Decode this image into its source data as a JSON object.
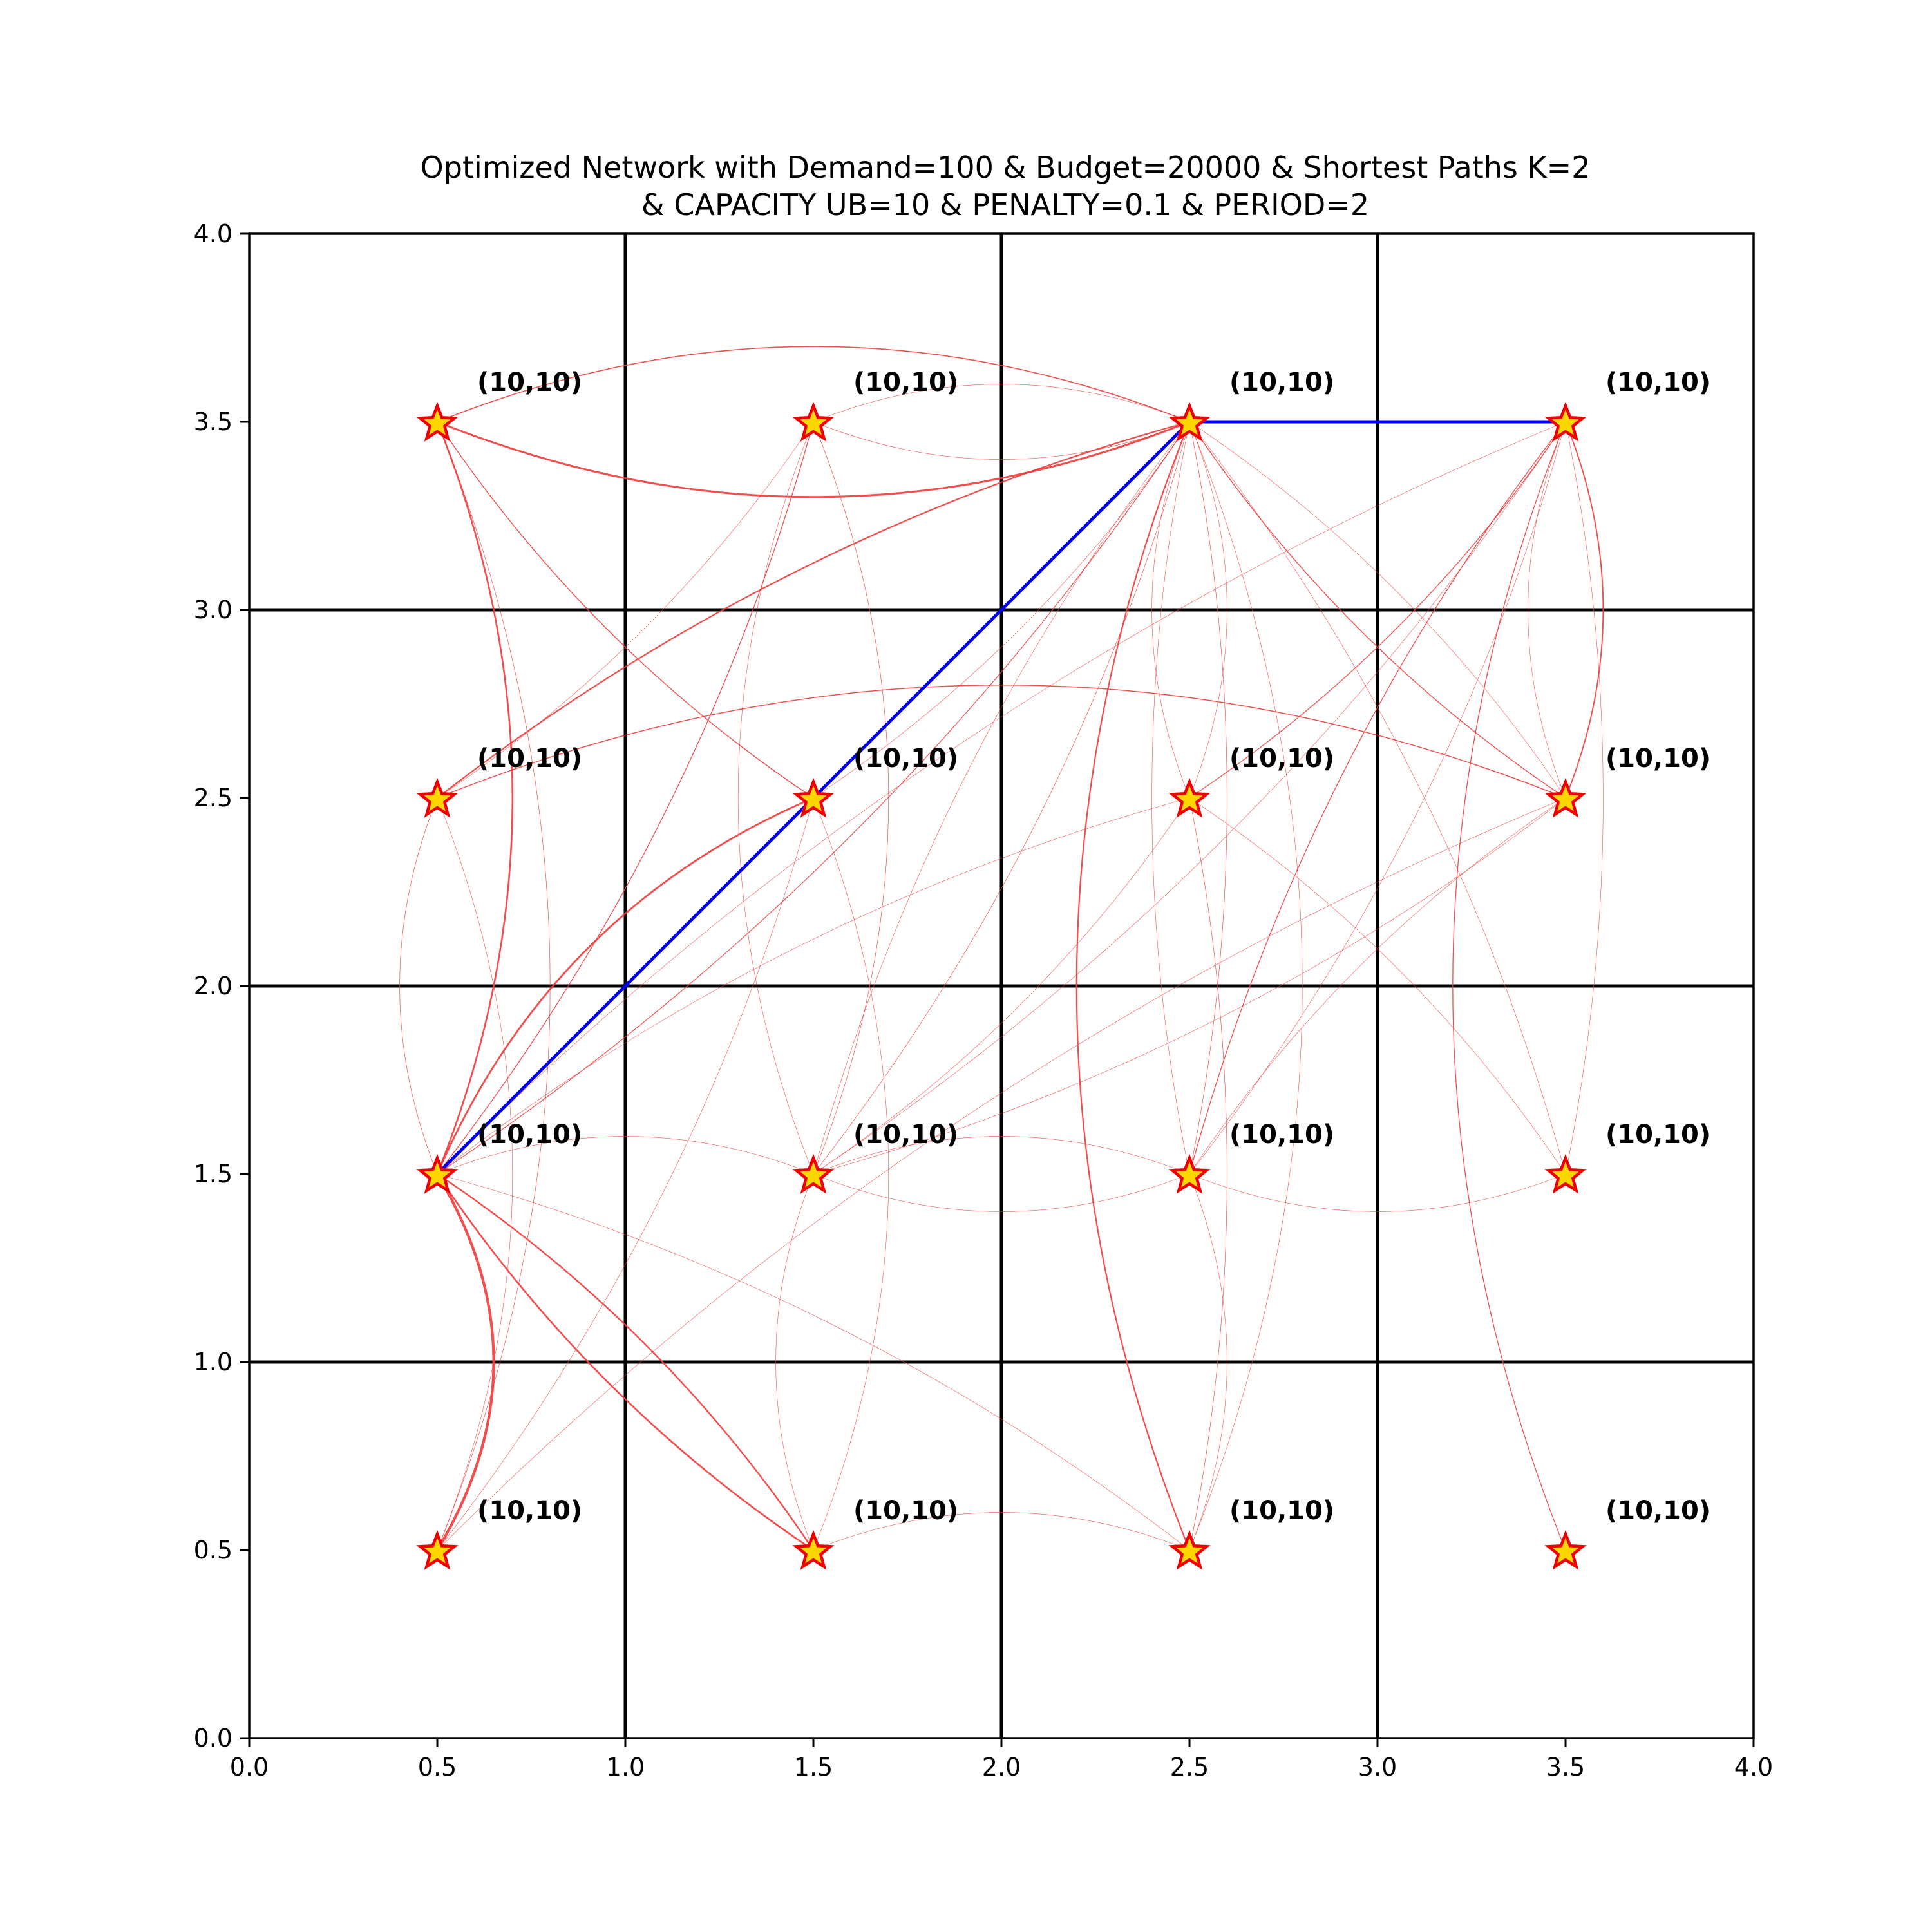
{
  "chart_data": {
    "type": "scatter",
    "title_line1": "Optimized Network with Demand=100 & Budget=20000 & Shortest Paths K=2",
    "title_line2": "& CAPACITY UB=10 & PENALTY=0.1 & PERIOD=2",
    "xlabel": "",
    "ylabel": "",
    "xlim": [
      0.0,
      4.0
    ],
    "ylim": [
      0.0,
      4.0
    ],
    "xticks": [
      "0.0",
      "0.5",
      "1.0",
      "1.5",
      "2.0",
      "2.5",
      "3.0",
      "3.5",
      "4.0"
    ],
    "yticks": [
      "0.0",
      "0.5",
      "1.0",
      "1.5",
      "2.0",
      "2.5",
      "3.0",
      "3.5",
      "4.0"
    ],
    "grid_lines": [
      1.0,
      2.0,
      3.0
    ],
    "nodes": [
      {
        "x": 0.5,
        "y": 3.5,
        "label": "(10,10)"
      },
      {
        "x": 1.5,
        "y": 3.5,
        "label": "(10,10)"
      },
      {
        "x": 2.5,
        "y": 3.5,
        "label": "(10,10)"
      },
      {
        "x": 3.5,
        "y": 3.5,
        "label": "(10,10)"
      },
      {
        "x": 0.5,
        "y": 2.5,
        "label": "(10,10)"
      },
      {
        "x": 1.5,
        "y": 2.5,
        "label": "(10,10)"
      },
      {
        "x": 2.5,
        "y": 2.5,
        "label": "(10,10)"
      },
      {
        "x": 3.5,
        "y": 2.5,
        "label": "(10,10)"
      },
      {
        "x": 0.5,
        "y": 1.5,
        "label": "(10,10)"
      },
      {
        "x": 1.5,
        "y": 1.5,
        "label": "(10,10)"
      },
      {
        "x": 2.5,
        "y": 1.5,
        "label": "(10,10)"
      },
      {
        "x": 3.5,
        "y": 1.5,
        "label": "(10,10)"
      },
      {
        "x": 0.5,
        "y": 0.5,
        "label": "(10,10)"
      },
      {
        "x": 1.5,
        "y": 0.5,
        "label": "(10,10)"
      },
      {
        "x": 2.5,
        "y": 0.5,
        "label": "(10,10)"
      },
      {
        "x": 3.5,
        "y": 0.5,
        "label": "(10,10)"
      }
    ],
    "selected_path": [
      [
        0.5,
        1.5
      ],
      [
        2.5,
        3.5
      ],
      [
        3.5,
        3.5
      ]
    ],
    "arcs": [
      {
        "from": [
          0.5,
          3.5
        ],
        "to": [
          2.5,
          3.5
        ],
        "rad": 0.2,
        "w": 1.6
      },
      {
        "from": [
          0.5,
          3.5
        ],
        "to": [
          2.5,
          3.5
        ],
        "rad": -0.2,
        "w": 3.0
      },
      {
        "from": [
          0.5,
          3.5
        ],
        "to": [
          0.5,
          1.5
        ],
        "rad": 0.2,
        "w": 2.6
      },
      {
        "from": [
          0.5,
          3.5
        ],
        "to": [
          0.5,
          0.5
        ],
        "rad": 0.2,
        "w": 0.7
      },
      {
        "from": [
          0.5,
          3.5
        ],
        "to": [
          1.5,
          2.5
        ],
        "rad": -0.1,
        "w": 1.4
      },
      {
        "from": [
          1.5,
          3.5
        ],
        "to": [
          2.5,
          3.5
        ],
        "rad": 0.2,
        "w": 0.6
      },
      {
        "from": [
          1.5,
          3.5
        ],
        "to": [
          2.5,
          3.5
        ],
        "rad": -0.2,
        "w": 0.7
      },
      {
        "from": [
          1.5,
          3.5
        ],
        "to": [
          0.5,
          1.5
        ],
        "rad": 0.1,
        "w": 1.3
      },
      {
        "from": [
          1.5,
          3.5
        ],
        "to": [
          0.5,
          2.5
        ],
        "rad": 0.1,
        "w": 0.6
      },
      {
        "from": [
          1.5,
          3.5
        ],
        "to": [
          1.5,
          1.5
        ],
        "rad": 0.2,
        "w": 0.7
      },
      {
        "from": [
          1.5,
          3.5
        ],
        "to": [
          1.5,
          1.5
        ],
        "rad": -0.2,
        "w": 0.6
      },
      {
        "from": [
          2.5,
          3.5
        ],
        "to": [
          0.5,
          2.5
        ],
        "rad": -0.1,
        "w": 2.2
      },
      {
        "from": [
          2.5,
          3.5
        ],
        "to": [
          0.5,
          1.5
        ],
        "rad": 0.1,
        "w": 1.2
      },
      {
        "from": [
          2.5,
          3.5
        ],
        "to": [
          1.5,
          2.5
        ],
        "rad": 0.1,
        "w": 0.6
      },
      {
        "from": [
          2.5,
          3.5
        ],
        "to": [
          1.5,
          1.5
        ],
        "rad": 0.1,
        "w": 0.7
      },
      {
        "from": [
          2.5,
          3.5
        ],
        "to": [
          1.5,
          1.5
        ],
        "rad": -0.1,
        "w": 0.6
      },
      {
        "from": [
          2.5,
          3.5
        ],
        "to": [
          2.5,
          2.5
        ],
        "rad": 0.2,
        "w": 0.6
      },
      {
        "from": [
          2.5,
          3.5
        ],
        "to": [
          2.5,
          2.5
        ],
        "rad": -0.2,
        "w": 0.6
      },
      {
        "from": [
          2.5,
          3.5
        ],
        "to": [
          2.5,
          1.5
        ],
        "rad": 0.1,
        "w": 0.7
      },
      {
        "from": [
          2.5,
          3.5
        ],
        "to": [
          2.5,
          1.5
        ],
        "rad": -0.1,
        "w": 0.6
      },
      {
        "from": [
          2.5,
          3.5
        ],
        "to": [
          2.5,
          0.5
        ],
        "rad": 0.2,
        "w": 0.6
      },
      {
        "from": [
          2.5,
          3.5
        ],
        "to": [
          2.5,
          0.5
        ],
        "rad": -0.2,
        "w": 2.2
      },
      {
        "from": [
          2.5,
          3.5
        ],
        "to": [
          3.5,
          2.5
        ],
        "rad": -0.1,
        "w": 1.4
      },
      {
        "from": [
          2.5,
          3.5
        ],
        "to": [
          3.5,
          2.5
        ],
        "rad": 0.1,
        "w": 0.6
      },
      {
        "from": [
          2.5,
          3.5
        ],
        "to": [
          3.5,
          1.5
        ],
        "rad": 0.1,
        "w": 0.6
      },
      {
        "from": [
          3.5,
          3.5
        ],
        "to": [
          0.5,
          1.5
        ],
        "rad": -0.1,
        "w": 0.6
      },
      {
        "from": [
          3.5,
          3.5
        ],
        "to": [
          1.5,
          1.5
        ],
        "rad": 0.1,
        "w": 0.6
      },
      {
        "from": [
          3.5,
          3.5
        ],
        "to": [
          2.5,
          2.5
        ],
        "rad": 0.1,
        "w": 1.3
      },
      {
        "from": [
          3.5,
          3.5
        ],
        "to": [
          2.5,
          1.5
        ],
        "rad": -0.1,
        "w": 1.3
      },
      {
        "from": [
          3.5,
          3.5
        ],
        "to": [
          2.5,
          1.5
        ],
        "rad": 0.1,
        "w": 0.6
      },
      {
        "from": [
          3.5,
          3.5
        ],
        "to": [
          3.5,
          2.5
        ],
        "rad": 0.2,
        "w": 1.9
      },
      {
        "from": [
          3.5,
          3.5
        ],
        "to": [
          3.5,
          2.5
        ],
        "rad": -0.2,
        "w": 0.6
      },
      {
        "from": [
          3.5,
          3.5
        ],
        "to": [
          3.5,
          1.5
        ],
        "rad": 0.1,
        "w": 0.6
      },
      {
        "from": [
          3.5,
          3.5
        ],
        "to": [
          3.5,
          0.5
        ],
        "rad": -0.2,
        "w": 1.3
      },
      {
        "from": [
          0.5,
          2.5
        ],
        "to": [
          3.5,
          2.5
        ],
        "rad": 0.2,
        "w": 1.5
      },
      {
        "from": [
          0.5,
          2.5
        ],
        "to": [
          0.5,
          1.5
        ],
        "rad": -0.2,
        "w": 0.7
      },
      {
        "from": [
          0.5,
          2.5
        ],
        "to": [
          0.5,
          0.5
        ],
        "rad": 0.2,
        "w": 0.6
      },
      {
        "from": [
          1.5,
          2.5
        ],
        "to": [
          0.5,
          1.5
        ],
        "rad": -0.2,
        "w": 2.8
      },
      {
        "from": [
          1.5,
          2.5
        ],
        "to": [
          1.5,
          0.5
        ],
        "rad": 0.2,
        "w": 0.6
      },
      {
        "from": [
          1.5,
          2.5
        ],
        "to": [
          0.5,
          0.5
        ],
        "rad": 0.1,
        "w": 0.6
      },
      {
        "from": [
          2.5,
          2.5
        ],
        "to": [
          0.5,
          1.5
        ],
        "rad": -0.1,
        "w": 0.6
      },
      {
        "from": [
          2.5,
          2.5
        ],
        "to": [
          1.5,
          1.5
        ],
        "rad": 0.1,
        "w": 0.6
      },
      {
        "from": [
          2.5,
          2.5
        ],
        "to": [
          2.5,
          0.5
        ],
        "rad": 0.1,
        "w": 0.7
      },
      {
        "from": [
          2.5,
          2.5
        ],
        "to": [
          3.5,
          1.5
        ],
        "rad": 0.1,
        "w": 0.6
      },
      {
        "from": [
          3.5,
          2.5
        ],
        "to": [
          1.5,
          1.5
        ],
        "rad": 0.1,
        "w": 0.6
      },
      {
        "from": [
          3.5,
          2.5
        ],
        "to": [
          2.5,
          1.5
        ],
        "rad": -0.1,
        "w": 0.6
      },
      {
        "from": [
          3.5,
          2.5
        ],
        "to": [
          0.5,
          0.5
        ],
        "rad": -0.1,
        "w": 0.6
      },
      {
        "from": [
          0.5,
          1.5
        ],
        "to": [
          1.5,
          1.5
        ],
        "rad": 0.2,
        "w": 0.6
      },
      {
        "from": [
          0.5,
          1.5
        ],
        "to": [
          0.5,
          0.5
        ],
        "rad": 0.3,
        "w": 4.2
      },
      {
        "from": [
          0.5,
          1.5
        ],
        "to": [
          1.5,
          0.5
        ],
        "rad": 0.1,
        "w": 2.4
      },
      {
        "from": [
          0.5,
          1.5
        ],
        "to": [
          1.5,
          0.5
        ],
        "rad": -0.1,
        "w": 2.6
      },
      {
        "from": [
          0.5,
          1.5
        ],
        "to": [
          2.5,
          0.5
        ],
        "rad": 0.1,
        "w": 0.6
      },
      {
        "from": [
          1.5,
          1.5
        ],
        "to": [
          2.5,
          1.5
        ],
        "rad": 0.2,
        "w": 0.6
      },
      {
        "from": [
          1.5,
          1.5
        ],
        "to": [
          2.5,
          1.5
        ],
        "rad": -0.2,
        "w": 0.6
      },
      {
        "from": [
          1.5,
          1.5
        ],
        "to": [
          1.5,
          0.5
        ],
        "rad": -0.2,
        "w": 0.6
      },
      {
        "from": [
          2.5,
          1.5
        ],
        "to": [
          3.5,
          1.5
        ],
        "rad": -0.2,
        "w": 0.6
      },
      {
        "from": [
          2.5,
          1.5
        ],
        "to": [
          2.5,
          0.5
        ],
        "rad": 0.2,
        "w": 0.6
      },
      {
        "from": [
          1.5,
          0.5
        ],
        "to": [
          2.5,
          0.5
        ],
        "rad": 0.2,
        "w": 0.6
      }
    ],
    "colors": {
      "arc": "#ef3b3b",
      "path": "#0000ee",
      "star_fill": "#ffd700",
      "star_edge": "#ee0000",
      "grid": "#000000",
      "text": "#000000"
    }
  }
}
